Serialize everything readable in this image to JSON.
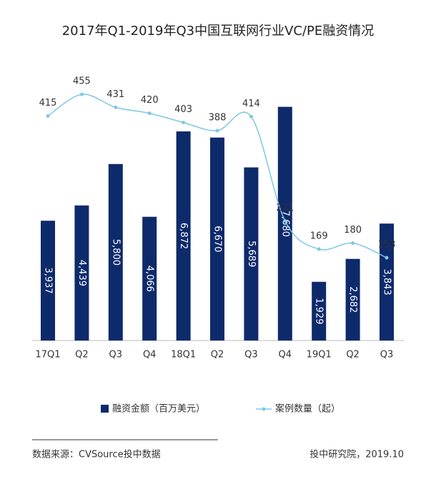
{
  "chart_data": {
    "type": "bar-line",
    "title": "2017年Q1-2019年Q3中国互联网行业VC/PE融资情况",
    "categories": [
      "17Q1",
      "Q2",
      "Q3",
      "Q4",
      "18Q1",
      "Q2",
      "Q3",
      "Q4",
      "19Q1",
      "Q2",
      "Q3"
    ],
    "series": [
      {
        "name": "融资金额（百万美元）",
        "type": "bar",
        "color": "#0d2a6b",
        "values": [
          3937,
          4439,
          5800,
          4066,
          6872,
          6670,
          5689,
          7680,
          1929,
          2682,
          3843
        ],
        "value_labels": [
          "3,937",
          "4,439",
          "5,800",
          "4,066",
          "6,872",
          "6,670",
          "5,689",
          "7,680",
          "1,929",
          "2,682",
          "3,843"
        ]
      },
      {
        "name": "案例数量（起）",
        "type": "line",
        "axis": "y2",
        "color": "#7ec8e3",
        "values": [
          415,
          455,
          431,
          420,
          403,
          388,
          414,
          221,
          169,
          180,
          153
        ]
      }
    ],
    "ylim": [
      0,
      8000
    ],
    "y2lim": [
      0,
      450
    ],
    "source": "数据来源：CVSource投中数据",
    "credit": "投中研究院，2019.10"
  }
}
